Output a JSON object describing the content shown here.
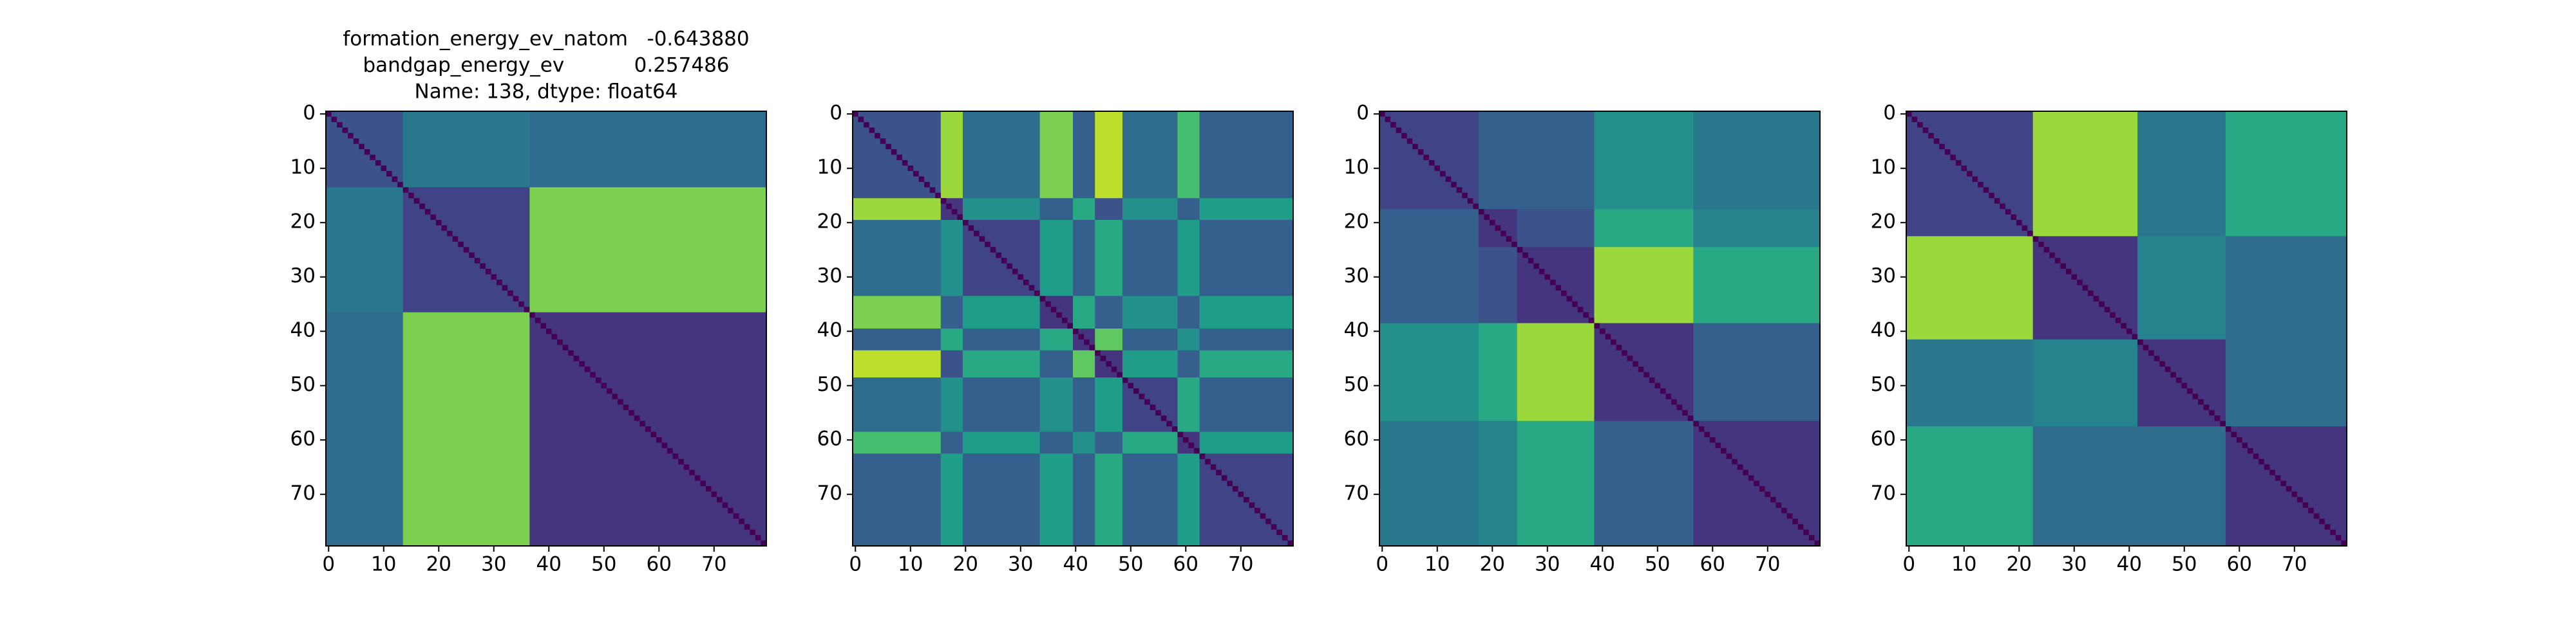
{
  "chart_data": [
    {
      "type": "heatmap",
      "title": [
        "formation_energy_ev_natom   -0.643880",
        "bandgap_energy_ev           0.257486",
        "Name: 138, dtype: float64"
      ],
      "colormap": "viridis",
      "clim": [
        0,
        1
      ],
      "diagonal": 0,
      "block_edges": [
        0,
        14,
        37,
        80
      ],
      "values": [
        [
          0.25,
          0.4,
          0.35
        ],
        [
          0.4,
          0.2,
          0.8
        ],
        [
          0.35,
          0.8,
          0.15
        ]
      ],
      "xlim": [
        -0.5,
        79.5
      ],
      "ylim": [
        79.5,
        -0.5
      ],
      "xticks": [
        0,
        10,
        20,
        30,
        40,
        50,
        60,
        70
      ],
      "yticks": [
        0,
        10,
        20,
        30,
        40,
        50,
        60,
        70
      ]
    },
    {
      "type": "heatmap",
      "colormap": "viridis",
      "clim": [
        0,
        1
      ],
      "diagonal": 0,
      "block_edges": [
        0,
        16,
        20,
        34,
        40,
        44,
        49,
        59,
        63,
        80
      ],
      "values": [
        [
          0.25,
          0.85,
          0.35,
          0.8,
          0.3,
          0.9,
          0.35,
          0.7,
          0.3
        ],
        [
          0.85,
          0.15,
          0.5,
          0.3,
          0.6,
          0.25,
          0.5,
          0.3,
          0.55
        ],
        [
          0.35,
          0.5,
          0.2,
          0.55,
          0.3,
          0.6,
          0.3,
          0.55,
          0.3
        ],
        [
          0.8,
          0.3,
          0.55,
          0.15,
          0.6,
          0.3,
          0.5,
          0.3,
          0.55
        ],
        [
          0.3,
          0.6,
          0.3,
          0.6,
          0.15,
          0.75,
          0.3,
          0.5,
          0.3
        ],
        [
          0.9,
          0.25,
          0.6,
          0.3,
          0.75,
          0.15,
          0.55,
          0.3,
          0.6
        ],
        [
          0.35,
          0.5,
          0.3,
          0.5,
          0.3,
          0.55,
          0.2,
          0.6,
          0.3
        ],
        [
          0.7,
          0.3,
          0.55,
          0.3,
          0.5,
          0.3,
          0.6,
          0.15,
          0.55
        ],
        [
          0.3,
          0.55,
          0.3,
          0.55,
          0.3,
          0.6,
          0.3,
          0.55,
          0.2
        ]
      ],
      "xlim": [
        -0.5,
        79.5
      ],
      "ylim": [
        79.5,
        -0.5
      ],
      "xticks": [
        0,
        10,
        20,
        30,
        40,
        50,
        60,
        70
      ],
      "yticks": [
        0,
        10,
        20,
        30,
        40,
        50,
        60,
        70
      ]
    },
    {
      "type": "heatmap",
      "colormap": "viridis",
      "clim": [
        0,
        1
      ],
      "diagonal": 0,
      "block_edges": [
        0,
        18,
        25,
        39,
        57,
        80
      ],
      "values": [
        [
          0.2,
          0.3,
          0.3,
          0.5,
          0.4
        ],
        [
          0.3,
          0.15,
          0.25,
          0.6,
          0.45
        ],
        [
          0.3,
          0.25,
          0.15,
          0.85,
          0.6
        ],
        [
          0.5,
          0.6,
          0.85,
          0.15,
          0.3
        ],
        [
          0.4,
          0.45,
          0.6,
          0.3,
          0.15
        ]
      ],
      "xlim": [
        -0.5,
        79.5
      ],
      "ylim": [
        79.5,
        -0.5
      ],
      "xticks": [
        0,
        10,
        20,
        30,
        40,
        50,
        60,
        70
      ],
      "yticks": [
        0,
        10,
        20,
        30,
        40,
        50,
        60,
        70
      ]
    },
    {
      "type": "heatmap",
      "colormap": "viridis",
      "clim": [
        0,
        1
      ],
      "diagonal": 0,
      "block_edges": [
        0,
        23,
        42,
        58,
        80
      ],
      "values": [
        [
          0.2,
          0.85,
          0.4,
          0.6
        ],
        [
          0.85,
          0.15,
          0.45,
          0.35
        ],
        [
          0.4,
          0.45,
          0.15,
          0.35
        ],
        [
          0.6,
          0.35,
          0.35,
          0.15
        ]
      ],
      "xlim": [
        -0.5,
        79.5
      ],
      "ylim": [
        79.5,
        -0.5
      ],
      "xticks": [
        0,
        10,
        20,
        30,
        40,
        50,
        60,
        70
      ],
      "yticks": [
        0,
        10,
        20,
        30,
        40,
        50,
        60,
        70
      ]
    }
  ]
}
